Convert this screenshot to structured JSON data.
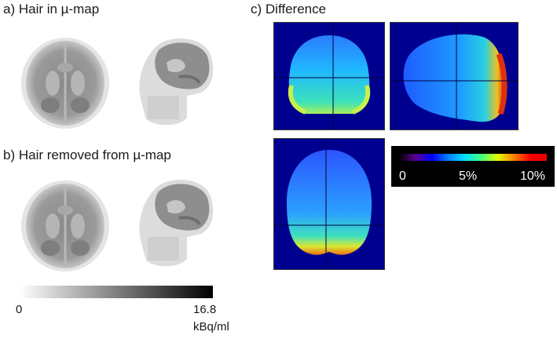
{
  "panels": {
    "a": {
      "label": "a) Hair in µ-map"
    },
    "b": {
      "label": "b) Hair removed from µ-map"
    },
    "c": {
      "label": "c) Difference"
    }
  },
  "pet_colorbar": {
    "min_label": "0",
    "max_label": "16.8",
    "unit": "kBq/ml"
  },
  "diff_colorbar": {
    "labels": [
      "0",
      "5%",
      "10%"
    ]
  },
  "colors": {
    "diff_background": "#00008f",
    "page_background": "#ffffff"
  }
}
